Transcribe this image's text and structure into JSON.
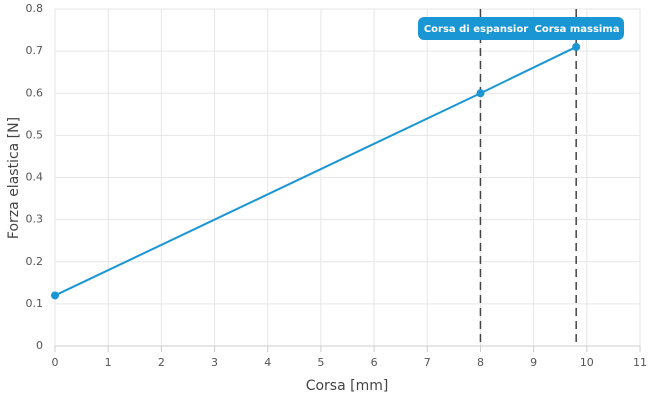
{
  "chart_data": {
    "type": "line",
    "x_label": "Corsa [mm]",
    "y_label": "Forza elastica [N]",
    "x": [
      0,
      8,
      9.8
    ],
    "series": [
      {
        "color": "#1a96d4",
        "values": [
          0.12,
          0.6,
          0.71
        ]
      }
    ],
    "xlim": [
      0,
      11
    ],
    "xticks": [
      0,
      1,
      2,
      3,
      4,
      5,
      6,
      7,
      8,
      9,
      10,
      11
    ],
    "ylim": [
      0,
      0.8
    ],
    "yticks": [
      0,
      0.1,
      0.2,
      0.3,
      0.4,
      0.5,
      0.6,
      0.7,
      0.8
    ],
    "grid": true,
    "annotations": [
      {
        "x": 8,
        "label": "Corsa di espansior"
      },
      {
        "x": 9.8,
        "label": "Corsa massima"
      }
    ]
  }
}
